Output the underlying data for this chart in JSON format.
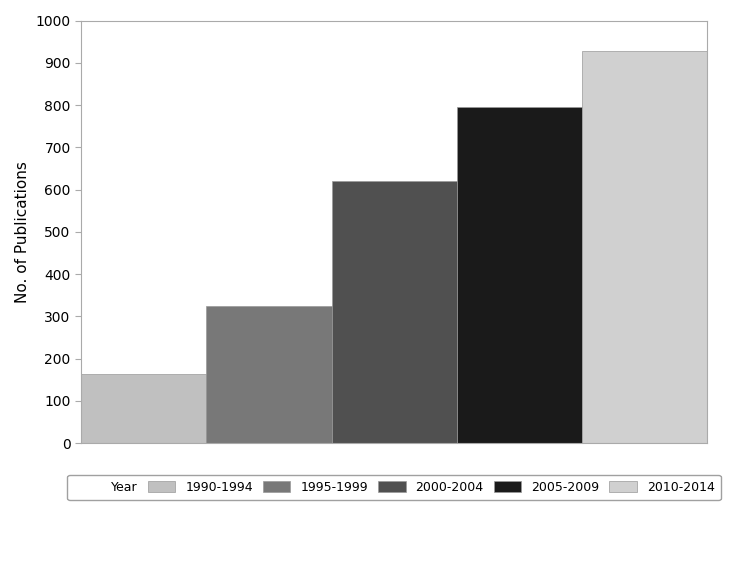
{
  "categories": [
    "1990-1994",
    "1995-1999",
    "2000-2004",
    "2005-2009",
    "2010-2014"
  ],
  "values": [
    163,
    325,
    620,
    795,
    928
  ],
  "bar_colors": [
    "#c0c0c0",
    "#787878",
    "#505050",
    "#1a1a1a",
    "#d0d0d0"
  ],
  "ylabel": "No. of Publications",
  "ylim": [
    0,
    1000
  ],
  "yticks": [
    0,
    100,
    200,
    300,
    400,
    500,
    600,
    700,
    800,
    900,
    1000
  ],
  "legend_label": "Year",
  "background_color": "#ffffff",
  "legend_colors": [
    "#c0c0c0",
    "#787878",
    "#505050",
    "#1a1a1a",
    "#d0d0d0"
  ]
}
